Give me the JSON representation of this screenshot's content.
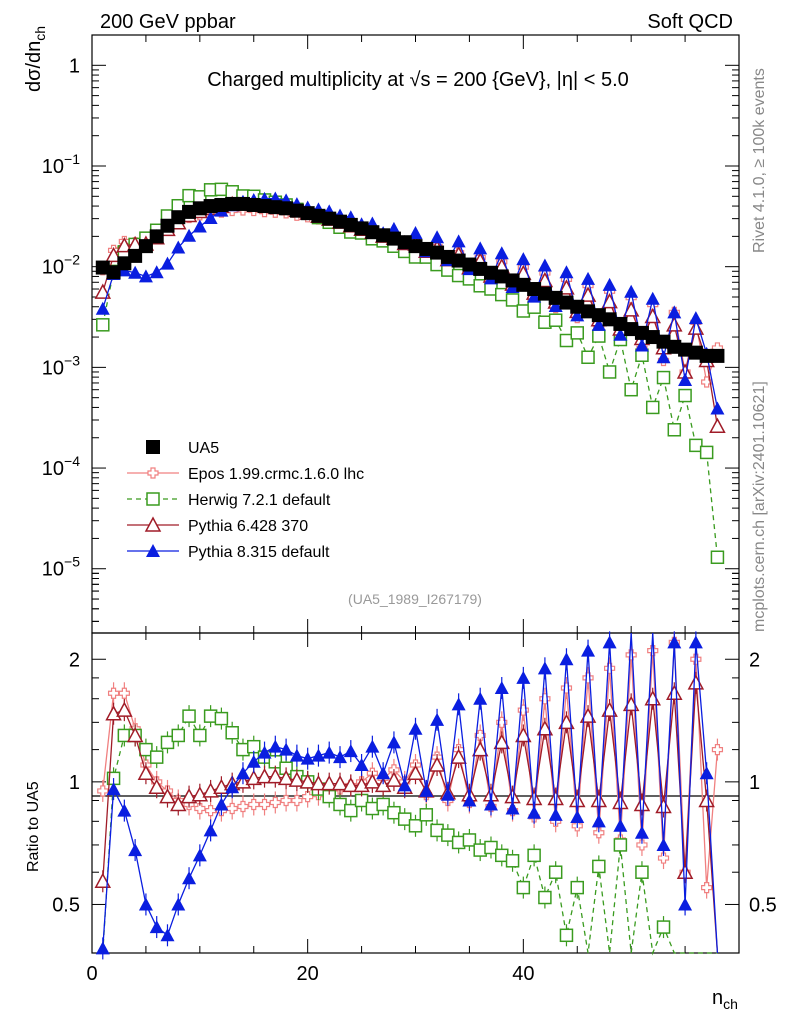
{
  "header": {
    "left": "200 GeV ppbar",
    "right": "Soft QCD"
  },
  "side": {
    "rivet": "Rivet 4.1.0, ≥ 100k events",
    "mcplots": "mcplots.cern.ch [arXiv:2401.10621]"
  },
  "chart_data": {
    "type": "scatter",
    "title": "Charged multiplicity at √s = 200 {GeV}, |η| < 5.0",
    "analysis": "(UA5_1989_I267179)",
    "ylabel_main": "dσ/dn_ch",
    "ylabel_ratio": "Ratio to UA5",
    "xlabel": "n_ch",
    "xlim": [
      0,
      60
    ],
    "ylim_main": [
      2.3e-06,
      2.0
    ],
    "ylim_ratio": [
      0.38,
      2.32
    ],
    "yscale_main": "log",
    "yscale_ratio": "log",
    "x_ticks": [
      "0",
      "20",
      "40"
    ],
    "y_ticks_main": [
      {
        "base": "1",
        "exp": ""
      },
      {
        "base": "10",
        "exp": "−1"
      },
      {
        "base": "10",
        "exp": "−2"
      },
      {
        "base": "10",
        "exp": "−3"
      },
      {
        "base": "10",
        "exp": "−4"
      },
      {
        "base": "10",
        "exp": "−5"
      }
    ],
    "y_ticks_ratio": [
      "2",
      "1",
      "0.5"
    ],
    "x": [
      1,
      2,
      3,
      4,
      5,
      6,
      7,
      8,
      9,
      10,
      11,
      12,
      13,
      14,
      15,
      16,
      17,
      18,
      19,
      20,
      21,
      22,
      23,
      24,
      25,
      26,
      27,
      28,
      29,
      30,
      31,
      32,
      33,
      34,
      35,
      36,
      37,
      38,
      39,
      40,
      41,
      42,
      43,
      44,
      45,
      46,
      47,
      48,
      49,
      50,
      51,
      52,
      53,
      54,
      55,
      56,
      57,
      58
    ],
    "reference": {
      "name": "UA5",
      "x": [
        1,
        2,
        3,
        4,
        5,
        6,
        7,
        8,
        9,
        10,
        11,
        12,
        13,
        14,
        15,
        16,
        17,
        18,
        19,
        20,
        21,
        22,
        23,
        24,
        25,
        26,
        27,
        28,
        29,
        30,
        31,
        32,
        33,
        34,
        35,
        36,
        37,
        38,
        39,
        40,
        41,
        42,
        43,
        44,
        45,
        46,
        47,
        48,
        49,
        50,
        51,
        52,
        53,
        54,
        55,
        56,
        57,
        58
      ],
      "values": [
        0.0098,
        0.0088,
        0.0108,
        0.0128,
        0.016,
        0.02,
        0.0255,
        0.031,
        0.035,
        0.038,
        0.04,
        0.041,
        0.042,
        0.042,
        0.041,
        0.04,
        0.039,
        0.038,
        0.036,
        0.034,
        0.032,
        0.03,
        0.028,
        0.026,
        0.024,
        0.022,
        0.0205,
        0.019,
        0.0175,
        0.016,
        0.015,
        0.0138,
        0.0125,
        0.0115,
        0.0105,
        0.0095,
        0.0087,
        0.008,
        0.0073,
        0.0066,
        0.006,
        0.0054,
        0.0049,
        0.0044,
        0.004,
        0.0036,
        0.0033,
        0.003,
        0.0027,
        0.0024,
        0.0022,
        0.002,
        0.0018,
        0.0016,
        0.0015,
        0.0014,
        0.0013,
        0.0013
      ]
    },
    "series": [
      {
        "name": "Epos 1.99.crmc.1.6.0 lhc",
        "color": "#f08080",
        "marker": "cross",
        "dashed": false,
        "ratio": [
          0.95,
          1.65,
          1.65,
          1.35,
          1.1,
          1.0,
          0.95,
          0.9,
          0.88,
          0.86,
          0.85,
          0.85,
          0.86,
          0.87,
          0.88,
          0.88,
          0.89,
          0.9,
          0.9,
          0.92,
          0.93,
          0.95,
          0.96,
          0.98,
          1.0,
          1.05,
          1.02,
          1.07,
          1.0,
          1.1,
          0.93,
          1.15,
          0.9,
          1.2,
          0.89,
          1.3,
          0.87,
          1.4,
          0.85,
          1.5,
          0.82,
          1.6,
          0.8,
          1.7,
          0.78,
          1.8,
          0.75,
          1.9,
          0.72,
          2.05,
          0.7,
          2.1,
          0.65,
          2.2,
          0.6,
          2.0,
          0.55,
          1.2
        ]
      },
      {
        "name": "Herwig 7.2.1 default",
        "color": "#3a9b1f",
        "marker": "square-open",
        "dashed": true,
        "ratio": [
          0.27,
          1.02,
          1.3,
          1.3,
          1.2,
          1.15,
          1.25,
          1.3,
          1.45,
          1.3,
          1.45,
          1.43,
          1.32,
          1.2,
          1.22,
          1.15,
          1.12,
          1.08,
          1.03,
          1.0,
          0.96,
          0.92,
          0.88,
          0.85,
          0.9,
          0.86,
          0.88,
          0.84,
          0.81,
          0.78,
          0.83,
          0.76,
          0.74,
          0.71,
          0.72,
          0.68,
          0.69,
          0.66,
          0.64,
          0.55,
          0.66,
          0.52,
          0.6,
          0.42,
          0.55,
          0.35,
          0.62,
          0.3,
          0.7,
          0.25,
          0.6,
          0.2,
          0.44,
          0.15,
          0.35,
          0.12,
          0.11,
          0.01
        ]
      },
      {
        "name": "Pythia 6.428 370",
        "color": "#a01c28",
        "marker": "triangle-open",
        "dashed": false,
        "ratio": [
          0.57,
          1.47,
          1.5,
          1.3,
          1.05,
          0.97,
          0.92,
          0.88,
          0.92,
          0.93,
          0.95,
          0.97,
          0.99,
          1.0,
          1.02,
          1.03,
          1.03,
          1.02,
          1.01,
          1.0,
          0.99,
          0.99,
          0.99,
          0.98,
          0.98,
          1.0,
          0.98,
          1.01,
          0.97,
          1.05,
          0.95,
          1.1,
          0.94,
          1.15,
          0.93,
          1.2,
          0.93,
          1.25,
          0.92,
          1.3,
          0.91,
          1.35,
          0.91,
          1.4,
          0.9,
          1.45,
          0.9,
          1.5,
          0.89,
          1.55,
          0.88,
          1.6,
          0.87,
          1.65,
          0.6,
          1.75,
          0.9,
          0.2
        ]
      },
      {
        "name": "Pythia 8.315 default",
        "color": "#0a1ee0",
        "marker": "triangle-filled",
        "dashed": false,
        "ratio": [
          0.39,
          0.96,
          0.85,
          0.68,
          0.5,
          0.44,
          0.42,
          0.5,
          0.58,
          0.66,
          0.76,
          0.88,
          0.97,
          1.05,
          1.12,
          1.18,
          1.22,
          1.2,
          1.16,
          1.14,
          1.16,
          1.18,
          1.15,
          1.19,
          1.1,
          1.22,
          1.05,
          1.25,
          0.98,
          1.35,
          0.95,
          1.42,
          0.93,
          1.55,
          0.9,
          1.6,
          0.88,
          1.7,
          0.86,
          1.8,
          0.84,
          1.9,
          0.83,
          2.0,
          0.82,
          2.1,
          0.8,
          2.2,
          0.78,
          2.35,
          0.75,
          2.4,
          0.7,
          2.2,
          0.5,
          2.2,
          1.05,
          0.3
        ]
      }
    ],
    "legend_position": "center-left"
  }
}
